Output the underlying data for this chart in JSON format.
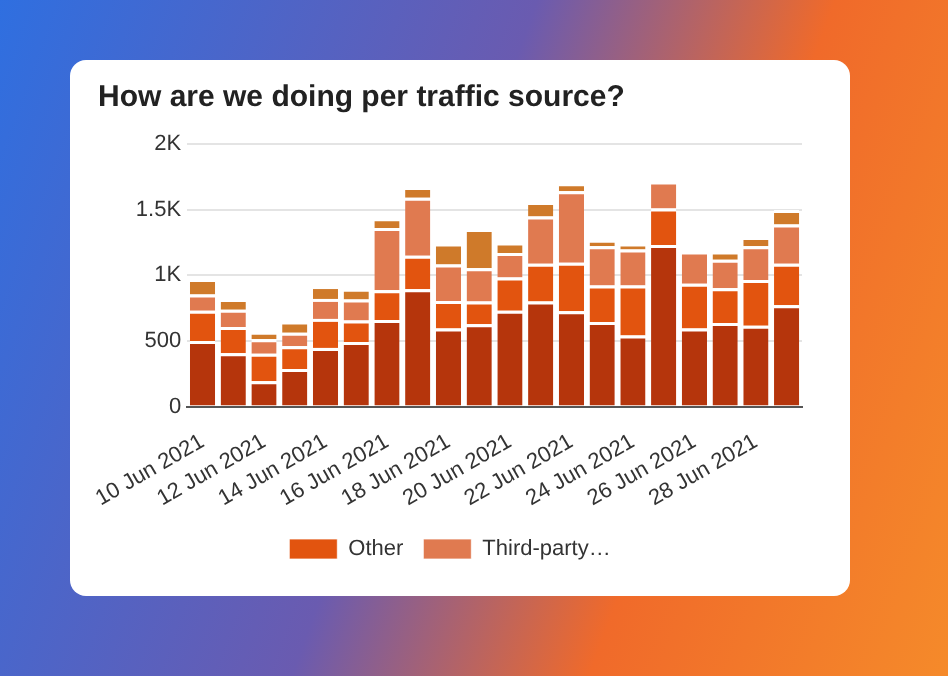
{
  "chart_data": {
    "type": "bar",
    "title": "How are we doing per traffic source?",
    "stacked": true,
    "categories": [
      "10 Jun 2021",
      null,
      "12 Jun 2021",
      null,
      "14 Jun 2021",
      null,
      "16 Jun 2021",
      null,
      "18 Jun 2021",
      null,
      "20 Jun 2021",
      null,
      "22 Jun 2021",
      null,
      "24 Jun 2021",
      null,
      "26 Jun 2021",
      null,
      "28 Jun 2021",
      null
    ],
    "series": [
      {
        "color": "#b5350c",
        "values": [
          500,
          406,
          193,
          287,
          447,
          492,
          660,
          894,
          595,
          627,
          730,
          800,
          726,
          644,
          541,
          1230,
          595,
          636,
          615,
          771
        ]
      },
      {
        "name": "Other",
        "color": "#e2540f",
        "values": [
          230,
          201,
          209,
          172,
          221,
          164,
          226,
          254,
          209,
          173,
          254,
          287,
          369,
          279,
          382,
          279,
          340,
          266,
          349,
          316
        ]
      },
      {
        "name": "Third-party…",
        "color": "#e07a50",
        "values": [
          123,
          131,
          111,
          103,
          152,
          160,
          475,
          443,
          278,
          254,
          185,
          360,
          545,
          299,
          274,
          205,
          246,
          217,
          258,
          299
        ]
      },
      {
        "color": "#cf7a2a",
        "values": [
          119,
          82,
          57,
          86,
          98,
          82,
          74,
          82,
          160,
          299,
          81,
          111,
          62,
          49,
          45,
          null,
          null,
          62,
          70,
          111
        ]
      }
    ],
    "ylim": [
      0,
      2000
    ],
    "yticks": [
      0,
      500,
      {
        "value": 1000,
        "label": "1K"
      },
      {
        "value": 1500,
        "label": "1.5K"
      },
      {
        "value": 2000,
        "label": "2K"
      }
    ],
    "grid": "y",
    "legend": "bottom"
  }
}
